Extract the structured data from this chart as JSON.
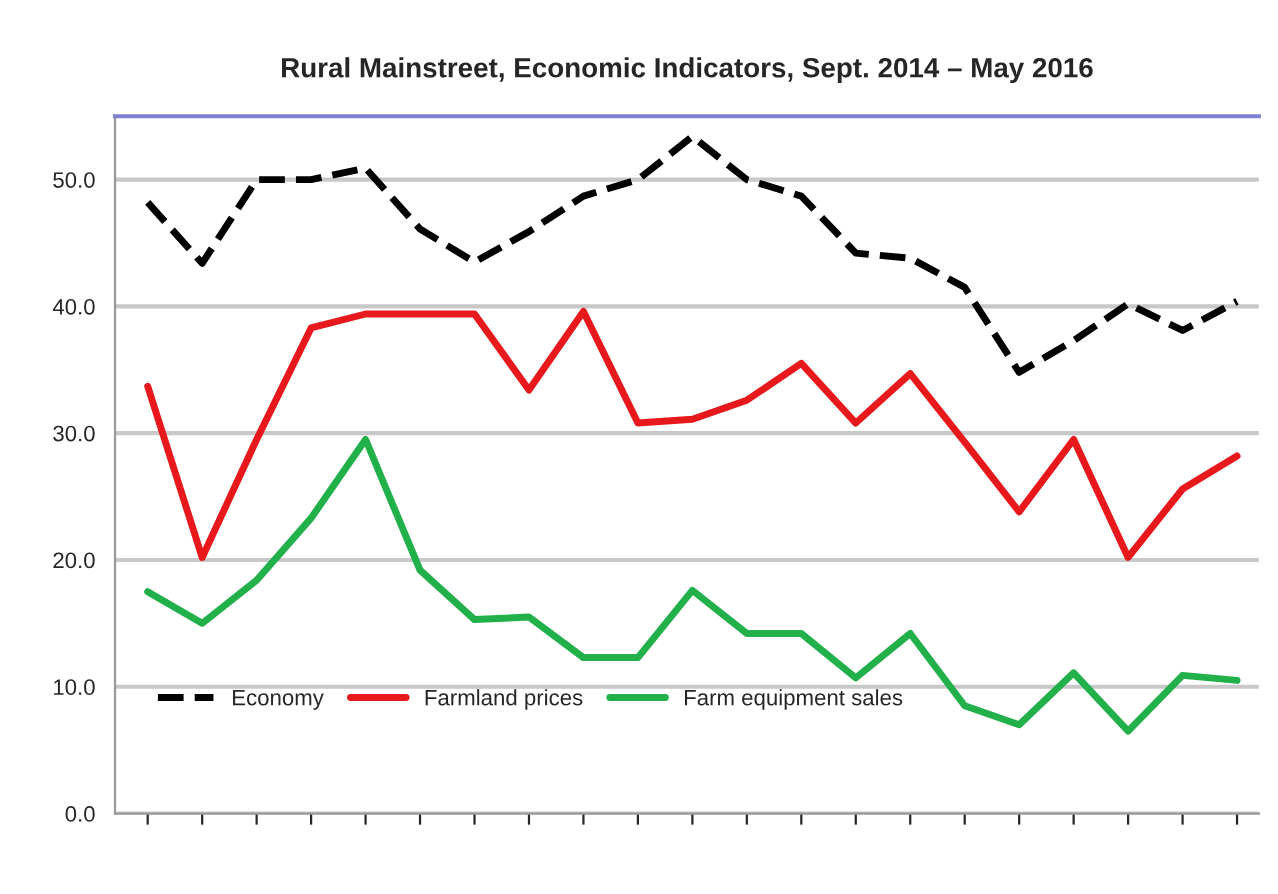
{
  "chart_data": {
    "type": "line",
    "title": "Rural Mainstreet, Economic Indicators, Sept. 2014 – May 2016",
    "categories": [
      null,
      null,
      null,
      null,
      null,
      null,
      null,
      null,
      null,
      null,
      null,
      null,
      null,
      null,
      null,
      null,
      null,
      null,
      null,
      null,
      null
    ],
    "series": [
      {
        "name": "Economy",
        "color": "#000000",
        "line_style": "dashed",
        "values": [
          48.2,
          43.4,
          50.0,
          50.0,
          50.9,
          46.1,
          43.5,
          45.9,
          48.7,
          50.0,
          53.4,
          50.0,
          48.7,
          44.2,
          43.8,
          41.5,
          34.8,
          37.3,
          40.2,
          38.1,
          40.4
        ]
      },
      {
        "name": "Farmland prices",
        "color": "#e8191c",
        "line_style": "solid",
        "values": [
          33.7,
          20.2,
          29.5,
          38.3,
          39.4,
          39.4,
          39.4,
          33.4,
          39.6,
          30.8,
          31.1,
          32.6,
          35.5,
          30.8,
          34.7,
          29.3,
          23.8,
          29.5,
          20.2,
          25.6,
          28.2
        ]
      },
      {
        "name": "Farm equipment sales",
        "color": "#22b04a",
        "line_style": "solid",
        "values": [
          17.5,
          15.0,
          18.4,
          23.3,
          29.5,
          19.2,
          15.3,
          15.5,
          12.3,
          12.3,
          17.6,
          14.2,
          14.2,
          10.7,
          14.2,
          8.5,
          7.0,
          11.1,
          6.5,
          10.9,
          10.5
        ]
      }
    ],
    "ylim": [
      0,
      55
    ],
    "yticks": [
      {
        "value": 0,
        "label": "0.0"
      },
      {
        "value": 10,
        "label": "10.0"
      },
      {
        "value": 20,
        "label": "20.0"
      },
      {
        "value": 30,
        "label": "30.0"
      },
      {
        "value": 40,
        "label": "40.0"
      },
      {
        "value": 50,
        "label": "50.0"
      }
    ],
    "grid": "y",
    "legend": "bottom left",
    "tick_labels": "y"
  }
}
